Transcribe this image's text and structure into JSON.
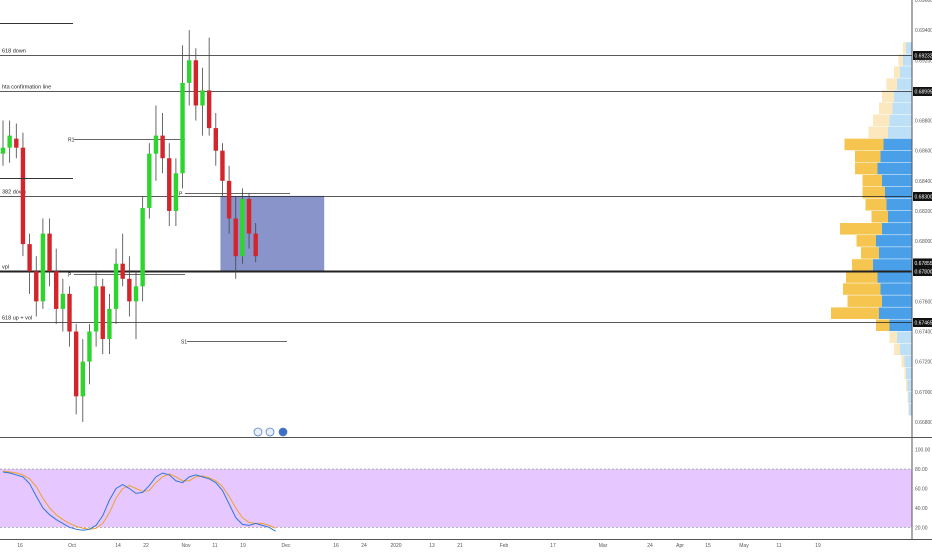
{
  "colors": {
    "up": "#2fd52f",
    "down": "#d3262c",
    "zone": "#5566b3",
    "rsi_band": "#e6c7ff",
    "rsi_line_k": "#2f78d7",
    "rsi_line_d": "#f0a030",
    "vp_blue": "#4aa0e8",
    "vp_yellow": "#f5c550",
    "vp_blue_light": "#bde0f6",
    "vp_yellow_light": "#fbe8be",
    "level_line": "#333333"
  },
  "chart_data": {
    "type": "candlestick",
    "ylim": [
      0.667,
      0.696
    ],
    "price_ticks": [
      "0.69600",
      "0.69400",
      "0.69200",
      "0.69000",
      "0.68800",
      "0.68600",
      "0.68400",
      "0.68200",
      "0.68000",
      "0.67800",
      "0.67600",
      "0.67400",
      "0.67200",
      "0.67000",
      "0.66800"
    ],
    "price_tick_values": [
      0.696,
      0.694,
      0.692,
      0.69,
      0.688,
      0.686,
      0.684,
      0.682,
      0.68,
      0.678,
      0.676,
      0.674,
      0.672,
      0.67,
      0.668
    ],
    "date_ticks": [
      "16",
      "Oct",
      "14",
      "22",
      "Nov",
      "11",
      "19",
      "Dec",
      "16",
      "24",
      "2020",
      "13",
      "21",
      "Feb",
      "17",
      "Mar",
      "24",
      "Apr",
      "15",
      "May",
      "11",
      "19"
    ],
    "levels": [
      {
        "label": "618 down",
        "value": 0.69232,
        "tag": "0.69232"
      },
      {
        "label": "hta confirmation line",
        "value": 0.68995,
        "tag": "0.68995"
      },
      {
        "label": "382 down",
        "value": 0.683,
        "tag": "0.68300"
      },
      {
        "label": "vpl",
        "value": 0.678,
        "tag": "0.67800"
      },
      {
        "label": "618 up + vol",
        "value": 0.67465,
        "tag": "0.67465"
      }
    ],
    "price_label_extra": {
      "value": 0.67855,
      "tag": "0.67855"
    },
    "pivots": [
      {
        "label": "R1",
        "value": 0.6868
      },
      {
        "label": "P",
        "value": 0.6832
      },
      {
        "label": "P",
        "value": 0.6778
      },
      {
        "label": "S1",
        "value": 0.6734
      }
    ],
    "candles": [
      {
        "o": 0.6858,
        "h": 0.688,
        "l": 0.685,
        "c": 0.6862
      },
      {
        "o": 0.6862,
        "h": 0.688,
        "l": 0.6852,
        "c": 0.687
      },
      {
        "o": 0.6868,
        "h": 0.6878,
        "l": 0.6855,
        "c": 0.6862
      },
      {
        "o": 0.6862,
        "h": 0.6872,
        "l": 0.679,
        "c": 0.6798
      },
      {
        "o": 0.6798,
        "h": 0.6805,
        "l": 0.6765,
        "c": 0.678
      },
      {
        "o": 0.678,
        "h": 0.679,
        "l": 0.675,
        "c": 0.676
      },
      {
        "o": 0.676,
        "h": 0.6815,
        "l": 0.6755,
        "c": 0.6805
      },
      {
        "o": 0.6805,
        "h": 0.6815,
        "l": 0.677,
        "c": 0.678
      },
      {
        "o": 0.678,
        "h": 0.6795,
        "l": 0.6745,
        "c": 0.6755
      },
      {
        "o": 0.6755,
        "h": 0.6775,
        "l": 0.674,
        "c": 0.6765
      },
      {
        "o": 0.6765,
        "h": 0.677,
        "l": 0.673,
        "c": 0.674
      },
      {
        "o": 0.674,
        "h": 0.6745,
        "l": 0.6685,
        "c": 0.6697
      },
      {
        "o": 0.6697,
        "h": 0.6735,
        "l": 0.668,
        "c": 0.672
      },
      {
        "o": 0.672,
        "h": 0.6745,
        "l": 0.6705,
        "c": 0.674
      },
      {
        "o": 0.674,
        "h": 0.678,
        "l": 0.673,
        "c": 0.677
      },
      {
        "o": 0.677,
        "h": 0.6775,
        "l": 0.6725,
        "c": 0.6735
      },
      {
        "o": 0.6735,
        "h": 0.6765,
        "l": 0.6725,
        "c": 0.6755
      },
      {
        "o": 0.6755,
        "h": 0.6795,
        "l": 0.6745,
        "c": 0.6785
      },
      {
        "o": 0.6785,
        "h": 0.6805,
        "l": 0.677,
        "c": 0.6775
      },
      {
        "o": 0.6775,
        "h": 0.679,
        "l": 0.675,
        "c": 0.676
      },
      {
        "o": 0.676,
        "h": 0.678,
        "l": 0.6735,
        "c": 0.677
      },
      {
        "o": 0.677,
        "h": 0.683,
        "l": 0.676,
        "c": 0.6822
      },
      {
        "o": 0.6822,
        "h": 0.6865,
        "l": 0.6815,
        "c": 0.6858
      },
      {
        "o": 0.6858,
        "h": 0.689,
        "l": 0.684,
        "c": 0.687
      },
      {
        "o": 0.687,
        "h": 0.6885,
        "l": 0.6845,
        "c": 0.6855
      },
      {
        "o": 0.6855,
        "h": 0.6865,
        "l": 0.681,
        "c": 0.682
      },
      {
        "o": 0.682,
        "h": 0.6855,
        "l": 0.681,
        "c": 0.6845
      },
      {
        "o": 0.6845,
        "h": 0.693,
        "l": 0.6835,
        "c": 0.6905
      },
      {
        "o": 0.6905,
        "h": 0.694,
        "l": 0.689,
        "c": 0.692
      },
      {
        "o": 0.692,
        "h": 0.6928,
        "l": 0.688,
        "c": 0.689
      },
      {
        "o": 0.689,
        "h": 0.6915,
        "l": 0.687,
        "c": 0.69
      },
      {
        "o": 0.69,
        "h": 0.6935,
        "l": 0.687,
        "c": 0.6875
      },
      {
        "o": 0.6875,
        "h": 0.6885,
        "l": 0.685,
        "c": 0.686
      },
      {
        "o": 0.686,
        "h": 0.6865,
        "l": 0.683,
        "c": 0.684
      },
      {
        "o": 0.684,
        "h": 0.685,
        "l": 0.6805,
        "c": 0.6815
      },
      {
        "o": 0.6815,
        "h": 0.683,
        "l": 0.6775,
        "c": 0.679
      },
      {
        "o": 0.679,
        "h": 0.6835,
        "l": 0.6785,
        "c": 0.6828
      },
      {
        "o": 0.6828,
        "h": 0.6832,
        "l": 0.6795,
        "c": 0.6805
      },
      {
        "o": 0.6805,
        "h": 0.6812,
        "l": 0.6786,
        "c": 0.679
      }
    ],
    "zone": {
      "from_candle": 33,
      "to_candle": 48,
      "top": 0.683,
      "bottom": 0.678
    },
    "volume_profile": {
      "price_step": 0.0008,
      "rows": [
        {
          "price": 0.6928,
          "blue": 0.08,
          "yellow": 0.04
        },
        {
          "price": 0.692,
          "blue": 0.12,
          "yellow": 0.06
        },
        {
          "price": 0.6912,
          "blue": 0.16,
          "yellow": 0.08
        },
        {
          "price": 0.6904,
          "blue": 0.2,
          "yellow": 0.14
        },
        {
          "price": 0.6896,
          "blue": 0.24,
          "yellow": 0.16
        },
        {
          "price": 0.6888,
          "blue": 0.26,
          "yellow": 0.18
        },
        {
          "price": 0.688,
          "blue": 0.3,
          "yellow": 0.22
        },
        {
          "price": 0.6872,
          "blue": 0.32,
          "yellow": 0.26
        },
        {
          "price": 0.6864,
          "blue": 0.38,
          "yellow": 0.52
        },
        {
          "price": 0.6856,
          "blue": 0.42,
          "yellow": 0.34
        },
        {
          "price": 0.6848,
          "blue": 0.46,
          "yellow": 0.3
        },
        {
          "price": 0.684,
          "blue": 0.4,
          "yellow": 0.26
        },
        {
          "price": 0.6832,
          "blue": 0.36,
          "yellow": 0.3
        },
        {
          "price": 0.6824,
          "blue": 0.34,
          "yellow": 0.28
        },
        {
          "price": 0.6816,
          "blue": 0.32,
          "yellow": 0.22
        },
        {
          "price": 0.6808,
          "blue": 0.4,
          "yellow": 0.56
        },
        {
          "price": 0.68,
          "blue": 0.48,
          "yellow": 0.26
        },
        {
          "price": 0.6792,
          "blue": 0.44,
          "yellow": 0.24
        },
        {
          "price": 0.6784,
          "blue": 0.52,
          "yellow": 0.28
        },
        {
          "price": 0.6776,
          "blue": 0.46,
          "yellow": 0.42
        },
        {
          "price": 0.6768,
          "blue": 0.42,
          "yellow": 0.5
        },
        {
          "price": 0.676,
          "blue": 0.4,
          "yellow": 0.46
        },
        {
          "price": 0.6752,
          "blue": 0.44,
          "yellow": 0.64
        },
        {
          "price": 0.6744,
          "blue": 0.3,
          "yellow": 0.18
        },
        {
          "price": 0.6736,
          "blue": 0.2,
          "yellow": 0.1
        },
        {
          "price": 0.6728,
          "blue": 0.16,
          "yellow": 0.08
        },
        {
          "price": 0.672,
          "blue": 0.1,
          "yellow": 0.04
        },
        {
          "price": 0.6712,
          "blue": 0.08,
          "yellow": 0.02
        },
        {
          "price": 0.6704,
          "blue": 0.06,
          "yellow": 0.02
        },
        {
          "price": 0.6696,
          "blue": 0.05,
          "yellow": 0.01
        },
        {
          "price": 0.6688,
          "blue": 0.04,
          "yellow": 0.01
        }
      ]
    },
    "rsi": {
      "ylim": [
        10,
        110
      ],
      "ticks": [
        "100.00",
        "80.00",
        "60.00",
        "40.00",
        "20.00"
      ],
      "tick_values": [
        100,
        80,
        60,
        40,
        20
      ],
      "band": [
        20,
        80
      ],
      "k": [
        77,
        76,
        74,
        72,
        65,
        52,
        40,
        33,
        28,
        24,
        20,
        18,
        17,
        18,
        22,
        32,
        48,
        60,
        64,
        60,
        55,
        56,
        63,
        72,
        76,
        74,
        68,
        66,
        72,
        74,
        72,
        70,
        66,
        58,
        44,
        30,
        23,
        22,
        24,
        22,
        20,
        16
      ],
      "d": [
        78,
        77,
        76,
        74,
        70,
        62,
        50,
        40,
        33,
        28,
        24,
        21,
        19,
        18,
        19,
        24,
        35,
        50,
        60,
        63,
        60,
        57,
        58,
        66,
        72,
        75,
        72,
        68,
        68,
        72,
        73,
        71,
        68,
        62,
        52,
        40,
        30,
        25,
        24,
        24,
        22,
        19
      ]
    }
  }
}
